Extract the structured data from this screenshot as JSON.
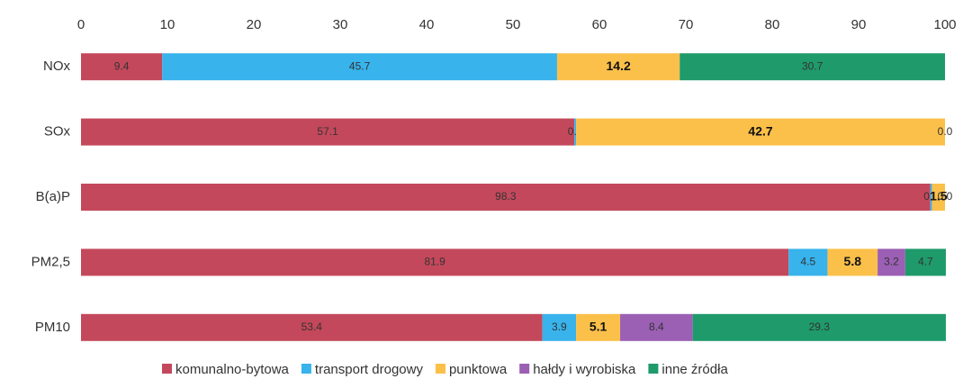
{
  "chart_data": {
    "type": "stacked-barh",
    "categories": [
      "NOx",
      "SOx",
      "B(a)P",
      "PM2,5",
      "PM10"
    ],
    "series": [
      {
        "name": "komunalno-bytowa",
        "color": "#c4485b",
        "values": [
          9.4,
          57.1,
          98.3,
          81.9,
          53.4
        ],
        "value_labels": [
          "9.4",
          "57.1",
          "98.3",
          "81.9",
          "53.4"
        ]
      },
      {
        "name": "transport drogowy",
        "color": "#38b3ec",
        "values": [
          45.7,
          0.2,
          0.2,
          4.5,
          3.9
        ],
        "value_labels": [
          "45.7",
          "0.2",
          "0.2",
          "4.5",
          "3.9"
        ]
      },
      {
        "name": "punktowa",
        "color": "#fbc04a",
        "values": [
          14.2,
          42.7,
          1.5,
          5.8,
          5.1
        ],
        "value_labels": [
          "14.2",
          "42.7",
          "1.5",
          "5.8",
          "5.1"
        ]
      },
      {
        "name": "hałdy i wyrobiska",
        "color": "#9b5fb4",
        "values": [
          null,
          null,
          null,
          3.2,
          8.4
        ],
        "value_labels": [
          null,
          null,
          null,
          "3.2",
          "8.4"
        ]
      },
      {
        "name": "inne źródła",
        "color": "#1f9a6b",
        "values": [
          30.7,
          0.0,
          0.0,
          4.7,
          29.3
        ],
        "value_labels": [
          "30.7",
          "0.0",
          "0.0",
          "4.7",
          "29.3"
        ]
      }
    ],
    "xlim": [
      0,
      100
    ],
    "xticks": [
      0,
      10,
      20,
      30,
      40,
      50,
      60,
      70,
      80,
      90,
      100
    ],
    "grid": false
  }
}
